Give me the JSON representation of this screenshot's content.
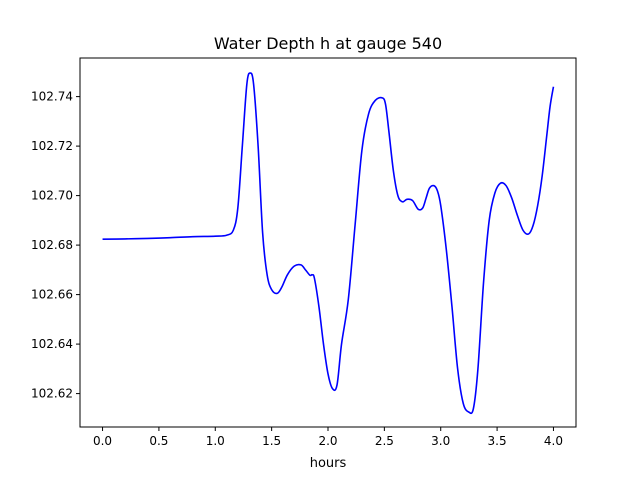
{
  "chart_data": {
    "type": "line",
    "title": "Water Depth h at gauge 540",
    "xlabel": "hours",
    "ylabel": "",
    "xlim": [
      -0.2,
      4.2
    ],
    "ylim": [
      102.6065,
      102.7556
    ],
    "xticks": [
      0.0,
      0.5,
      1.0,
      1.5,
      2.0,
      2.5,
      3.0,
      3.5,
      4.0
    ],
    "xtick_labels": [
      "0.0",
      "0.5",
      "1.0",
      "1.5",
      "2.0",
      "2.5",
      "3.0",
      "3.5",
      "4.0"
    ],
    "yticks": [
      102.62,
      102.64,
      102.66,
      102.68,
      102.7,
      102.72,
      102.74
    ],
    "ytick_labels": [
      "102.62",
      "102.64",
      "102.66",
      "102.68",
      "102.70",
      "102.72",
      "102.74"
    ],
    "grid": false,
    "series": [
      {
        "color": "#0000ff",
        "x": [
          0.0,
          0.2,
          0.4,
          0.6,
          0.8,
          1.0,
          1.1,
          1.16,
          1.2,
          1.24,
          1.28,
          1.31,
          1.34,
          1.38,
          1.42,
          1.46,
          1.5,
          1.55,
          1.59,
          1.64,
          1.7,
          1.76,
          1.8,
          1.84,
          1.86,
          1.88,
          1.92,
          1.96,
          2.0,
          2.04,
          2.08,
          2.12,
          2.18,
          2.24,
          2.3,
          2.36,
          2.42,
          2.48,
          2.51,
          2.54,
          2.58,
          2.62,
          2.66,
          2.7,
          2.75,
          2.8,
          2.84,
          2.87,
          2.9,
          2.94,
          2.97,
          3.0,
          3.05,
          3.1,
          3.15,
          3.2,
          3.25,
          3.29,
          3.33,
          3.38,
          3.43,
          3.48,
          3.53,
          3.58,
          3.63,
          3.68,
          3.73,
          3.78,
          3.82,
          3.86,
          3.9,
          3.94,
          3.97,
          4.0
        ],
        "y": [
          102.6824,
          102.6825,
          102.6827,
          102.683,
          102.6834,
          102.6836,
          102.684,
          102.686,
          102.695,
          102.72,
          102.745,
          102.7495,
          102.745,
          102.72,
          102.685,
          102.668,
          102.662,
          102.6605,
          102.663,
          102.668,
          102.6715,
          102.672,
          102.67,
          102.6678,
          102.668,
          102.6665,
          102.655,
          102.64,
          102.628,
          102.622,
          102.6235,
          102.64,
          102.658,
          102.688,
          102.718,
          102.733,
          102.7385,
          102.7395,
          102.737,
          102.726,
          102.71,
          102.7,
          102.6975,
          102.6985,
          102.698,
          102.6945,
          102.695,
          102.699,
          102.703,
          102.704,
          102.702,
          102.696,
          102.678,
          102.655,
          102.63,
          102.616,
          102.6125,
          102.614,
          102.63,
          102.665,
          102.69,
          102.701,
          102.705,
          102.704,
          102.699,
          102.692,
          102.686,
          102.6845,
          102.688,
          102.696,
          102.708,
          102.724,
          102.736,
          102.744
        ]
      }
    ]
  }
}
